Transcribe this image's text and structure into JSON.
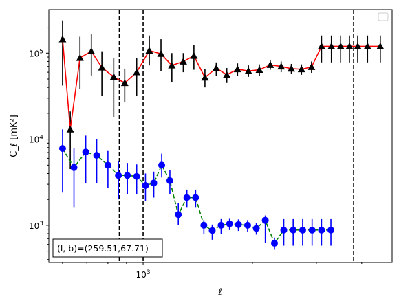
{
  "chart_data": {
    "type": "line",
    "xlabel": "ℓ",
    "ylabel": "C_ℓ  [mK²]",
    "xscale": "log",
    "yscale": "log",
    "xlim": [
      550,
      4850
    ],
    "ylim": [
      370,
      320000
    ],
    "x_ticks": [
      {
        "value": 1000,
        "base": "10",
        "exp": "3"
      }
    ],
    "y_ticks": [
      {
        "value": 1000,
        "base": "10",
        "exp": "3"
      },
      {
        "value": 10000,
        "base": "10",
        "exp": "4"
      },
      {
        "value": 100000,
        "base": "10",
        "exp": "5"
      }
    ],
    "x": [
      600,
      650,
      700,
      750,
      800,
      850,
      900,
      950,
      1000,
      1060,
      1120,
      1180,
      1240,
      1310,
      1380,
      1450,
      1530,
      1610,
      1700,
      1800,
      1900,
      2010,
      2130,
      2260,
      2400,
      2550,
      2720,
      2900,
      3080,
      3250,
      3400,
      3600,
      3750,
      3900,
      4100,
      4300,
      4500
    ],
    "series": [
      {
        "color": "#ff0000",
        "marker": "triangle",
        "marker_color": "#000000",
        "linestyle": "solid",
        "x": [
          600,
          630,
          670,
          720,
          770,
          830,
          890,
          960,
          1040,
          1120,
          1200,
          1290,
          1380,
          1480,
          1590,
          1700,
          1820,
          1950,
          2090,
          2240,
          2400,
          2560,
          2730,
          2910,
          3100,
          3300,
          3500,
          3700,
          3900,
          4150,
          4500
        ],
        "values": [
          145000,
          13000,
          88000,
          105000,
          68000,
          53000,
          45000,
          60000,
          107000,
          98000,
          72000,
          80000,
          93000,
          52000,
          67000,
          56000,
          65000,
          62000,
          64000,
          73000,
          70000,
          66000,
          65000,
          69000,
          120000,
          120000,
          120000,
          120000,
          120000,
          120000,
          120000
        ],
        "err_low": [
          42000,
          4500,
          38000,
          55000,
          32000,
          18000,
          27000,
          32000,
          72000,
          62000,
          46000,
          60000,
          64000,
          40000,
          54000,
          45000,
          54000,
          53000,
          54000,
          64000,
          60000,
          57000,
          56000,
          59000,
          78000,
          78000,
          78000,
          78000,
          78000,
          78000,
          78000
        ],
        "err_high": [
          240000,
          21000,
          155000,
          165000,
          105000,
          88000,
          66000,
          88000,
          160000,
          145000,
          100000,
          100000,
          125000,
          65000,
          78000,
          67000,
          76000,
          72000,
          74000,
          82000,
          80000,
          75000,
          74000,
          80000,
          160000,
          160000,
          160000,
          160000,
          160000,
          160000,
          160000
        ]
      },
      {
        "color": "#008000",
        "marker": "circle",
        "marker_color": "#0000ff",
        "linestyle": "dashed",
        "x": [
          600,
          645,
          695,
          745,
          800,
          855,
          905,
          960,
          1015,
          1070,
          1125,
          1185,
          1250,
          1320,
          1395,
          1470,
          1550,
          1640,
          1730,
          1830,
          1940,
          2050,
          2170,
          2300,
          2440,
          2590,
          2750,
          2920,
          3100,
          3290
        ],
        "values": [
          7800,
          4700,
          7100,
          6500,
          5000,
          3800,
          3800,
          3700,
          2900,
          3100,
          5000,
          3300,
          1330,
          2100,
          2100,
          1000,
          870,
          1000,
          1040,
          1020,
          1000,
          920,
          1140,
          620,
          880,
          880,
          880,
          880,
          880,
          880
        ],
        "err_low": [
          2400,
          1600,
          3100,
          3100,
          2700,
          2000,
          2300,
          2300,
          1900,
          2100,
          3600,
          2300,
          1000,
          1600,
          1600,
          800,
          680,
          800,
          880,
          860,
          840,
          780,
          620,
          520,
          580,
          580,
          580,
          580,
          580,
          580
        ],
        "err_high": [
          13000,
          7800,
          11000,
          10000,
          7300,
          5600,
          5300,
          5100,
          4000,
          4200,
          6800,
          4400,
          1800,
          2600,
          2600,
          1150,
          1020,
          1180,
          1190,
          1170,
          1150,
          1060,
          1300,
          720,
          1180,
          1180,
          1180,
          1180,
          1180,
          1180
        ]
      }
    ],
    "vlines": [
      860,
      1000,
      3800
    ],
    "annotation": "(l, b)=(259.51,67.71)",
    "legend": "top-right",
    "grid": false
  }
}
